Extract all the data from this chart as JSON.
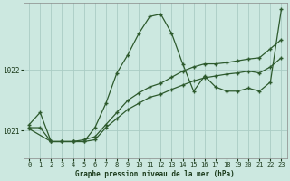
{
  "title": "Graphe pression niveau de la mer (hPa)",
  "background_color": "#cce8e0",
  "line_color": "#2d5a2d",
  "grid_color": "#aaccc4",
  "tick_color": "#1a3a1a",
  "xlim": [
    -0.5,
    23.5
  ],
  "ylim": [
    1020.55,
    1023.1
  ],
  "yticks": [
    1021,
    1022
  ],
  "xticks": [
    0,
    1,
    2,
    3,
    4,
    5,
    6,
    7,
    8,
    9,
    10,
    11,
    12,
    13,
    14,
    15,
    16,
    17,
    18,
    19,
    20,
    21,
    22,
    23
  ],
  "series1_x": [
    0,
    1,
    2,
    3,
    4,
    5,
    6,
    7,
    8,
    9,
    10,
    11,
    12,
    13,
    14,
    15,
    16,
    17,
    18,
    19,
    20,
    21,
    22,
    23
  ],
  "series1_y": [
    1021.1,
    1021.3,
    1020.82,
    1020.82,
    1020.82,
    1020.82,
    1021.05,
    1021.45,
    1021.95,
    1022.25,
    1022.6,
    1022.88,
    1022.92,
    1022.6,
    1022.1,
    1021.65,
    1021.9,
    1021.72,
    1021.65,
    1021.65,
    1021.7,
    1021.65,
    1021.8,
    1023.0
  ],
  "series2_x": [
    0,
    1,
    2,
    3,
    4,
    5,
    6,
    7,
    8,
    9,
    10,
    11,
    12,
    13,
    14,
    15,
    16,
    17,
    18,
    19,
    20,
    21,
    22,
    23
  ],
  "series2_y": [
    1021.05,
    1021.05,
    1020.82,
    1020.82,
    1020.82,
    1020.85,
    1020.9,
    1021.1,
    1021.3,
    1021.5,
    1021.62,
    1021.72,
    1021.78,
    1021.88,
    1021.98,
    1022.05,
    1022.1,
    1022.1,
    1022.12,
    1022.15,
    1022.18,
    1022.2,
    1022.35,
    1022.5
  ],
  "series3_x": [
    0,
    2,
    3,
    4,
    5,
    6,
    7,
    8,
    9,
    10,
    11,
    12,
    13,
    14,
    15,
    16,
    17,
    18,
    19,
    20,
    21,
    22,
    23
  ],
  "series3_y": [
    1021.03,
    1020.82,
    1020.82,
    1020.82,
    1020.82,
    1020.85,
    1021.05,
    1021.2,
    1021.35,
    1021.45,
    1021.55,
    1021.6,
    1021.68,
    1021.75,
    1021.82,
    1021.87,
    1021.9,
    1021.93,
    1021.95,
    1021.98,
    1021.95,
    1022.05,
    1022.2
  ]
}
